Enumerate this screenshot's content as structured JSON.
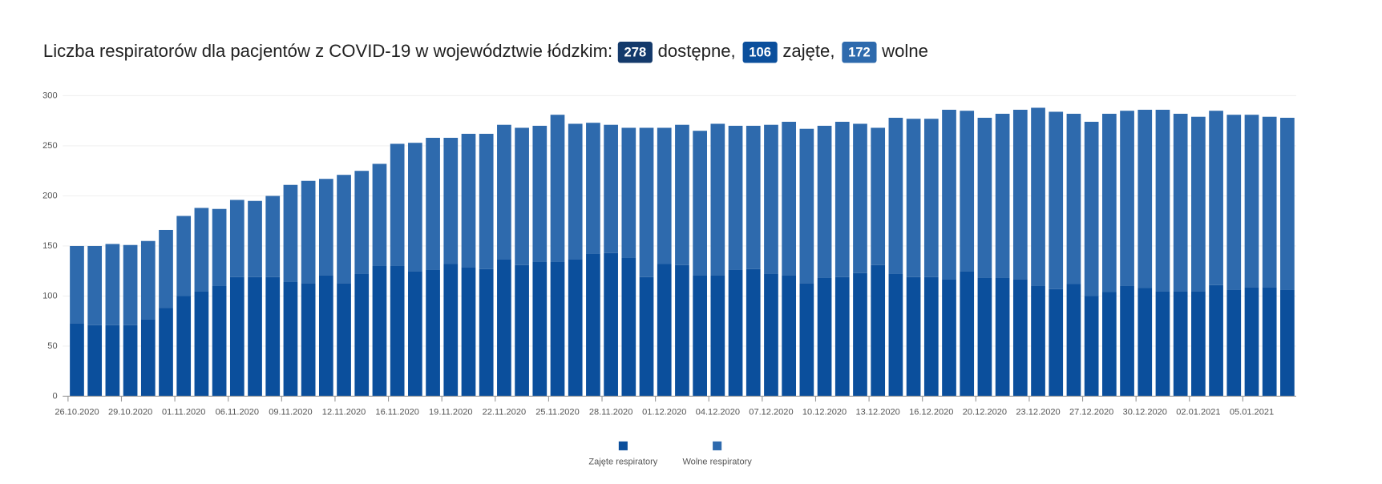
{
  "chart_data": {
    "type": "stacked_bar",
    "title": "Liczba respiratorów dla pacjentów z COVID-19 w województwie łódzkim:",
    "summary": [
      {
        "value": 278,
        "label": "dostępne,",
        "color": "#143a6b"
      },
      {
        "value": 106,
        "label": "zajęte,",
        "color": "#0b4f9c"
      },
      {
        "value": 172,
        "label": "wolne",
        "color": "#2e6aad"
      }
    ],
    "categories": [
      "26.10.2020",
      null,
      null,
      "29.10.2020",
      null,
      null,
      "01.11.2020",
      null,
      null,
      "06.11.2020",
      null,
      null,
      "09.11.2020",
      null,
      null,
      "12.11.2020",
      null,
      null,
      "16.11.2020",
      null,
      null,
      "19.11.2020",
      null,
      null,
      "22.11.2020",
      null,
      null,
      "25.11.2020",
      null,
      null,
      "28.11.2020",
      null,
      null,
      "01.12.2020",
      null,
      null,
      "04.12.2020",
      null,
      null,
      "07.12.2020",
      null,
      null,
      "10.12.2020",
      null,
      null,
      "13.12.2020",
      null,
      null,
      "16.12.2020",
      null,
      null,
      "20.12.2020",
      null,
      null,
      "23.12.2020",
      null,
      null,
      "27.12.2020",
      null,
      null,
      "30.12.2020",
      null,
      null,
      "02.01.2021",
      null,
      null,
      "05.01.2021",
      null,
      null
    ],
    "series": [
      {
        "name": "Zajęte respiratory",
        "color": "#0b4f9c",
        "values": [
          73,
          71,
          71,
          71,
          77,
          88,
          100,
          105,
          110,
          119,
          119,
          119,
          114,
          113,
          121,
          113,
          122,
          130,
          130,
          125,
          126,
          132,
          129,
          127,
          137,
          131,
          134,
          134,
          137,
          142,
          143,
          138,
          119,
          132,
          131,
          121,
          121,
          126,
          127,
          122,
          121,
          113,
          118,
          119,
          123,
          131,
          122,
          119,
          119,
          117,
          125,
          118,
          118,
          117,
          110,
          107,
          112,
          100,
          104,
          110,
          108,
          105,
          105,
          105,
          111,
          106,
          109,
          109,
          106
        ]
      },
      {
        "name": "Wolne respiratory",
        "color": "#2e6aad",
        "values": [
          77,
          79,
          81,
          80,
          78,
          78,
          80,
          83,
          77,
          77,
          76,
          81,
          97,
          102,
          96,
          108,
          103,
          102,
          122,
          128,
          132,
          126,
          133,
          135,
          134,
          137,
          136,
          147,
          135,
          131,
          128,
          130,
          149,
          136,
          140,
          144,
          151,
          144,
          143,
          149,
          153,
          154,
          152,
          155,
          149,
          137,
          156,
          158,
          158,
          169,
          160,
          160,
          164,
          169,
          178,
          177,
          170,
          174,
          178,
          175,
          178,
          181,
          177,
          174,
          174,
          175,
          172,
          170,
          172
        ]
      }
    ],
    "ylim": [
      0,
      300
    ],
    "yticks": [
      0,
      50,
      100,
      150,
      200,
      250,
      300
    ],
    "grid": true
  }
}
